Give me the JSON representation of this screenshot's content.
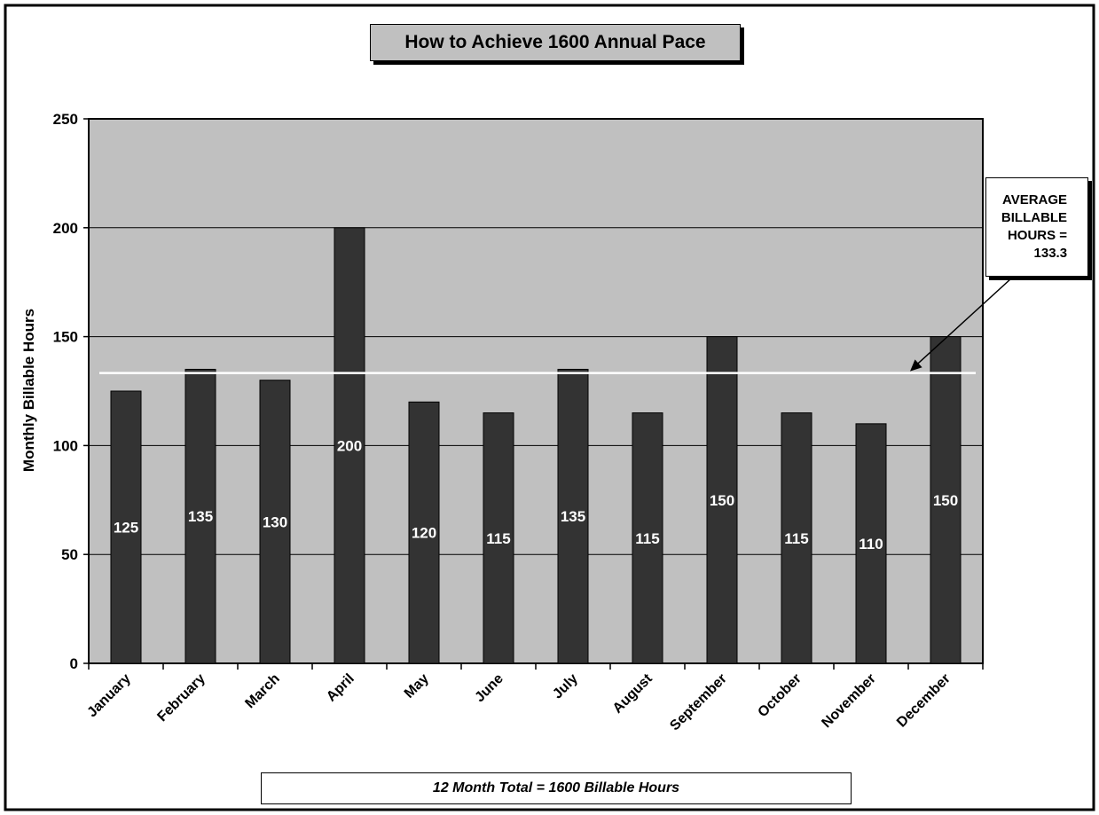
{
  "chart_data": {
    "type": "bar",
    "title": "How to Achieve 1600 Annual Pace",
    "ylabel": "Monthly Billable Hours",
    "xlabel": "",
    "categories": [
      "January",
      "February",
      "March",
      "April",
      "May",
      "June",
      "July",
      "August",
      "September",
      "October",
      "November",
      "December"
    ],
    "values": [
      125,
      135,
      130,
      200,
      120,
      115,
      135,
      115,
      150,
      115,
      110,
      150
    ],
    "ylim": [
      0,
      250
    ],
    "yticks": [
      0,
      50,
      100,
      150,
      200,
      250
    ],
    "grid": true,
    "average_line": 133.3,
    "annotations": {
      "average": "AVERAGE\nBILLABLE\nHOURS =\n133.3",
      "total": "12 Month Total = 1600 Billable Hours"
    },
    "colors": {
      "plot_background": "#c0c0c0",
      "bar": "#333333",
      "average_line": "#ffffff",
      "bar_label": "#ffffff"
    }
  }
}
